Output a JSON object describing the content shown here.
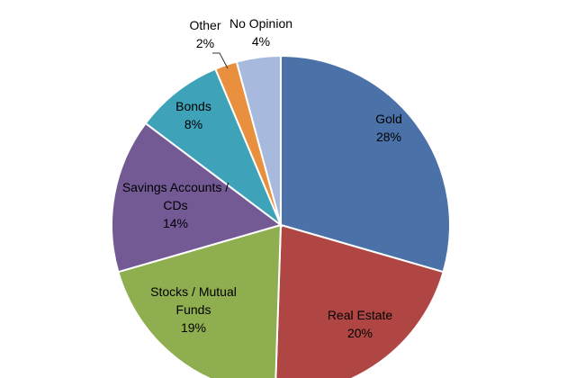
{
  "chart_data": {
    "type": "pie",
    "title": "",
    "slices": [
      {
        "label": [
          "Gold"
        ],
        "value": 28,
        "display": "28%",
        "color": "#4a72a8"
      },
      {
        "label": [
          "Real Estate"
        ],
        "value": 20,
        "display": "20%",
        "color": "#b04644"
      },
      {
        "label": [
          "Stocks / Mutual",
          "Funds"
        ],
        "value": 19,
        "display": "19%",
        "color": "#8fae4f"
      },
      {
        "label": [
          "Savings Accounts /",
          "CDs"
        ],
        "value": 14,
        "display": "14%",
        "color": "#735a95"
      },
      {
        "label": [
          "Bonds"
        ],
        "value": 8,
        "display": "8%",
        "color": "#3ea2b8"
      },
      {
        "label": [
          "Other"
        ],
        "value": 2,
        "display": "2%",
        "color": "#e8903d"
      },
      {
        "label": [
          "No Opinion"
        ],
        "value": 4,
        "display": "4%",
        "color": "#a7b9dc"
      }
    ],
    "start_angle": "12 o'clock",
    "direction": "clockwise",
    "legend": "none",
    "data_labels": "inside slices; Other uses leader line"
  }
}
